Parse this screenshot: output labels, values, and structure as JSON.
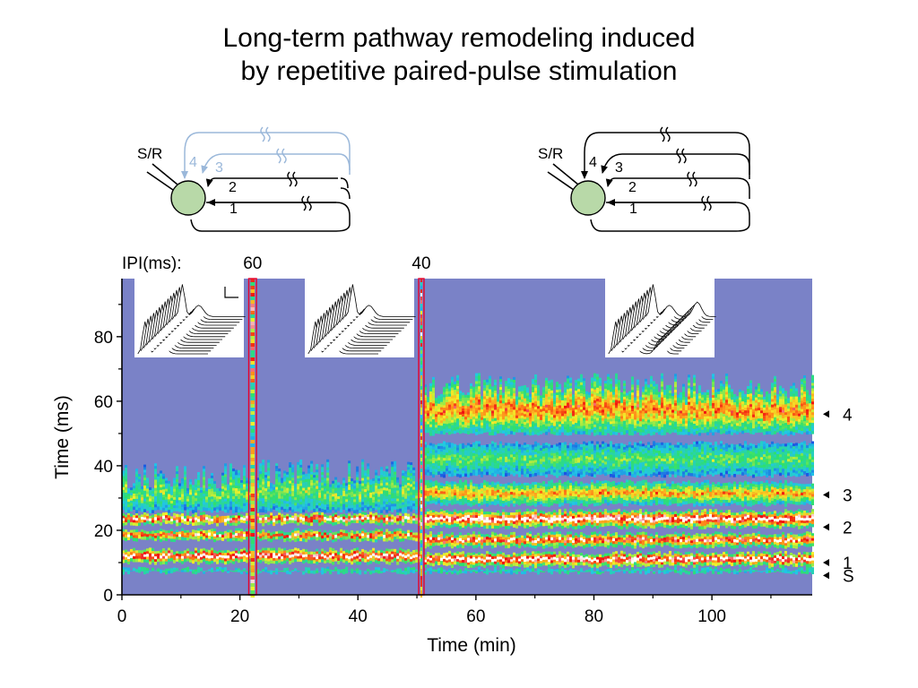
{
  "title_line1": "Long-term pathway remodeling induced",
  "title_line2": "by repetitive paired-pulse stimulation",
  "diagram_left": {
    "sr_label": "S/R",
    "pathway_labels": [
      "1",
      "2",
      "3",
      "4"
    ],
    "inactive_color": "#9bb8da"
  },
  "diagram_right": {
    "sr_label": "S/R",
    "pathway_labels": [
      "1",
      "2",
      "3",
      "4"
    ]
  },
  "ipi": {
    "label": "IPI(ms):",
    "values": [
      "60",
      "40"
    ]
  },
  "colors": {
    "background": "#7a82c7",
    "neuron_fill": "#b8d9a8",
    "stim_box": "#e8002a"
  },
  "chart_data": {
    "type": "heatmap",
    "title": "",
    "xlabel": "Time (min)",
    "ylabel": "Time (ms)",
    "xlim": [
      0,
      117
    ],
    "ylim": [
      0,
      98
    ],
    "x_ticks": [
      "0",
      "20",
      "40",
      "60",
      "80",
      "100"
    ],
    "x_tick_values": [
      0,
      20,
      40,
      60,
      80,
      100
    ],
    "y_ticks": [
      "0",
      "20",
      "40",
      "60",
      "80"
    ],
    "y_tick_values": [
      0,
      20,
      40,
      60,
      80
    ],
    "grid": false,
    "stimulation_windows": [
      {
        "ipi_ms": 60,
        "start_min": 21.5,
        "end_min": 22.8
      },
      {
        "ipi_ms": 40,
        "start_min": 50.3,
        "end_min": 51.2
      }
    ],
    "response_bands": [
      {
        "label": "S",
        "latency_ms": 6
      },
      {
        "label": "1",
        "latency_ms": 10
      },
      {
        "label": "2",
        "latency_ms": 21
      },
      {
        "label": "3",
        "latency_ms": 31
      },
      {
        "label": "4",
        "latency_ms": 56
      }
    ],
    "segments": [
      {
        "start_min": 0,
        "end_min": 21.5,
        "bands_ms": [
          [
            7,
            8
          ],
          [
            10,
            14
          ],
          [
            17,
            20
          ],
          [
            22,
            25
          ],
          [
            26,
            37
          ]
        ],
        "intensity": [
          0.45,
          1.0,
          0.85,
          0.95,
          0.5
        ]
      },
      {
        "start_min": 22.8,
        "end_min": 50.3,
        "bands_ms": [
          [
            7,
            8
          ],
          [
            10,
            14
          ],
          [
            17,
            20
          ],
          [
            22,
            25
          ],
          [
            26,
            38
          ]
        ],
        "intensity": [
          0.45,
          1.0,
          0.85,
          0.95,
          0.5
        ]
      },
      {
        "start_min": 51.2,
        "end_min": 117,
        "bands_ms": [
          [
            7,
            8
          ],
          [
            9,
            13
          ],
          [
            15,
            19
          ],
          [
            21,
            26
          ],
          [
            28,
            35
          ],
          [
            37,
            47
          ],
          [
            50,
            65
          ]
        ],
        "intensity": [
          0.45,
          1.0,
          0.9,
          1.0,
          0.7,
          0.45,
          0.75
        ]
      }
    ]
  }
}
